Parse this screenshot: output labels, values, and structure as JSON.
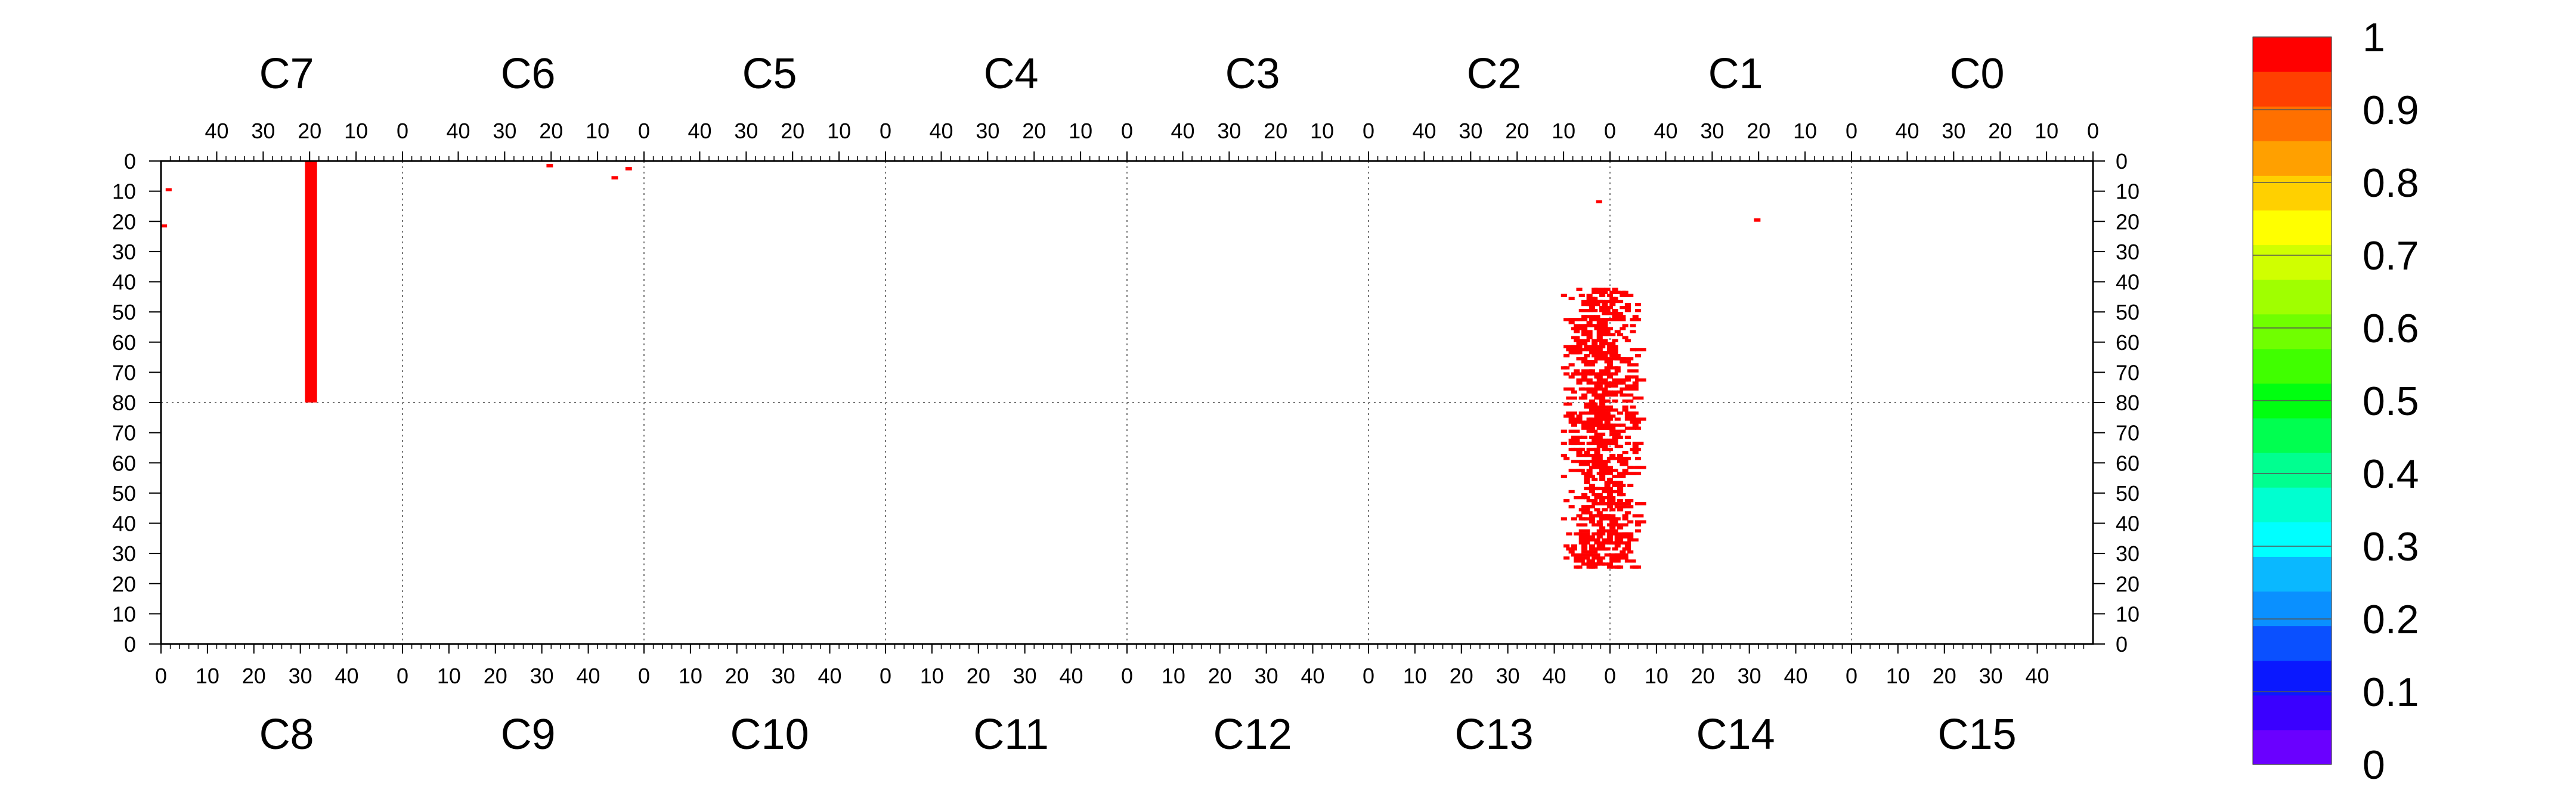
{
  "chart_data": {
    "type": "heatmap",
    "title": "",
    "xlabel": "",
    "ylabel": "",
    "grid": true,
    "legend": "colorbar-right",
    "top_chips": [
      "C7",
      "C6",
      "C5",
      "C4",
      "C3",
      "C2",
      "C1",
      "C0"
    ],
    "bottom_chips": [
      "C8",
      "C9",
      "C10",
      "C11",
      "C12",
      "C13",
      "C14",
      "C15"
    ],
    "chip_columns": 52,
    "chip_rows": 80,
    "top_x_ticks": [
      "40",
      "30",
      "20",
      "10",
      "0"
    ],
    "bottom_x_ticks": [
      "0",
      "10",
      "20",
      "30",
      "40"
    ],
    "y_ticks_top_half": [
      "0",
      "10",
      "20",
      "30",
      "40",
      "50",
      "60",
      "70",
      "80"
    ],
    "y_ticks_bottom_half": [
      "70",
      "60",
      "50",
      "40",
      "30",
      "20",
      "10",
      "0"
    ],
    "colorbar": {
      "min": 0,
      "max": 1,
      "labels": [
        "1",
        "0.9",
        "0.8",
        "0.7",
        "0.6",
        "0.5",
        "0.4",
        "0.3",
        "0.2",
        "0.1",
        "0"
      ],
      "colors": [
        "#6a00ff",
        "#3a00ff",
        "#0a18ff",
        "#0a50ff",
        "#0a90ff",
        "#0ab8ff",
        "#00ffff",
        "#00ffd0",
        "#00ff90",
        "#00ff50",
        "#00ff10",
        "#40ff00",
        "#70ff00",
        "#a0ff00",
        "#d0ff00",
        "#ffff00",
        "#ffd000",
        "#ffa000",
        "#ff7000",
        "#ff4000",
        "#ff0000"
      ]
    },
    "hit_color": "#ff0000",
    "series": [
      {
        "chip": "C7",
        "points": [
          {
            "x": 50,
            "y": 9,
            "value": 1
          },
          {
            "x": 51,
            "y": 21,
            "value": 1
          },
          {
            "x": 19,
            "y": 0,
            "value": 1,
            "dx": 2,
            "dy": 80
          }
        ]
      },
      {
        "chip": "C9",
        "points": [
          {
            "x": 31,
            "y": 81,
            "value": 1
          },
          {
            "x": 45,
            "y": 85,
            "value": 1
          },
          {
            "x": 48,
            "y": 82,
            "value": 1
          }
        ]
      },
      {
        "chip": "C2",
        "points": [
          {
            "x": 2,
            "y": 13,
            "value": 1
          }
        ]
      },
      {
        "chip": "C13",
        "points": [
          {
            "x": 50,
            "y": 150,
            "value": 1
          },
          {
            "x": 49,
            "y": 151,
            "value": 1
          }
        ]
      },
      {
        "chip": "C14",
        "points": [
          {
            "x": 31,
            "y": 99,
            "value": 1
          }
        ]
      },
      {
        "chip": "C13/C14",
        "description_note": "",
        "cluster": {
          "x_start": 38,
          "x_end": 68,
          "y_start": 42,
          "y_end": 135,
          "density": 0.4,
          "value": 1
        }
      }
    ]
  }
}
